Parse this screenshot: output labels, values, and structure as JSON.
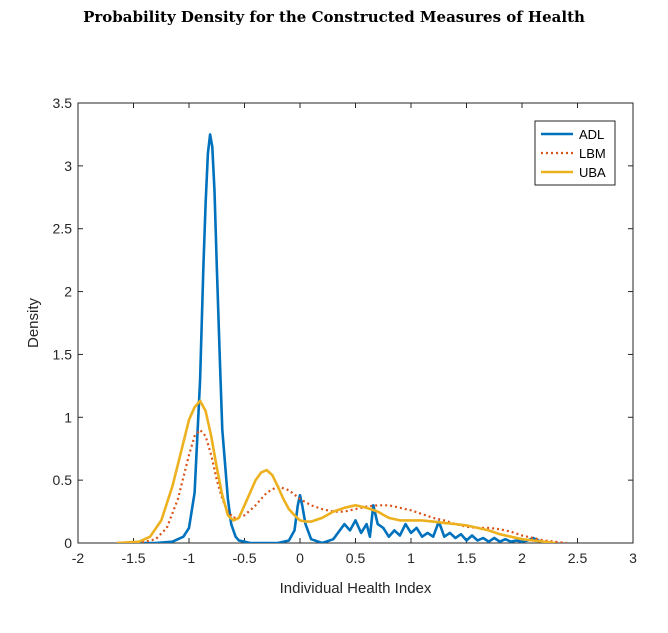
{
  "chart_data": {
    "type": "line",
    "title": "Probability Density for the Constructed Measures of Health",
    "xlabel": "Individual Health Index",
    "ylabel": "Density",
    "xlim": [
      -2,
      3
    ],
    "ylim": [
      0,
      3.5
    ],
    "xticks": [
      "-2",
      "-1.5",
      "-1",
      "-0.5",
      "0",
      "0.5",
      "1",
      "1.5",
      "2",
      "2.5",
      "3"
    ],
    "yticks": [
      "0",
      "0.5",
      "1",
      "1.5",
      "2",
      "2.5",
      "3",
      "3.5"
    ],
    "grid": false,
    "legend_position": "top-right",
    "series": [
      {
        "name": "ADL",
        "color": "#0072BD",
        "style": "solid",
        "x": [
          -1.6,
          -1.3,
          -1.15,
          -1.05,
          -1.0,
          -0.95,
          -0.9,
          -0.87,
          -0.85,
          -0.83,
          -0.81,
          -0.79,
          -0.77,
          -0.75,
          -0.72,
          -0.7,
          -0.65,
          -0.62,
          -0.58,
          -0.55,
          -0.5,
          -0.45,
          -0.4,
          -0.3,
          -0.2,
          -0.1,
          -0.05,
          -0.02,
          0.0,
          0.02,
          0.05,
          0.1,
          0.2,
          0.3,
          0.4,
          0.45,
          0.5,
          0.55,
          0.6,
          0.63,
          0.66,
          0.7,
          0.75,
          0.8,
          0.85,
          0.9,
          0.95,
          1.0,
          1.05,
          1.1,
          1.15,
          1.2,
          1.25,
          1.3,
          1.35,
          1.4,
          1.45,
          1.5,
          1.55,
          1.6,
          1.65,
          1.7,
          1.75,
          1.8,
          1.85,
          1.9,
          1.95,
          2.0,
          2.05,
          2.1,
          2.15,
          2.2,
          2.3
        ],
        "y": [
          0.0,
          0.0,
          0.01,
          0.05,
          0.12,
          0.4,
          1.3,
          2.2,
          2.7,
          3.1,
          3.25,
          3.15,
          2.8,
          2.2,
          1.4,
          0.9,
          0.35,
          0.15,
          0.05,
          0.02,
          0.01,
          0.0,
          0.0,
          0.0,
          0.0,
          0.02,
          0.1,
          0.3,
          0.38,
          0.3,
          0.15,
          0.03,
          0.0,
          0.03,
          0.15,
          0.1,
          0.18,
          0.08,
          0.15,
          0.05,
          0.3,
          0.15,
          0.12,
          0.05,
          0.1,
          0.06,
          0.15,
          0.08,
          0.12,
          0.05,
          0.08,
          0.05,
          0.17,
          0.05,
          0.08,
          0.04,
          0.07,
          0.02,
          0.06,
          0.02,
          0.04,
          0.01,
          0.04,
          0.01,
          0.03,
          0.01,
          0.02,
          0.01,
          0.02,
          0.04,
          0.02,
          0.0,
          0.0
        ]
      },
      {
        "name": "LBM",
        "color": "#D95319",
        "style": "dotted",
        "x": [
          -1.65,
          -1.4,
          -1.3,
          -1.2,
          -1.1,
          -1.0,
          -0.95,
          -0.9,
          -0.85,
          -0.8,
          -0.75,
          -0.7,
          -0.65,
          -0.6,
          -0.5,
          -0.4,
          -0.3,
          -0.2,
          -0.1,
          0.0,
          0.1,
          0.2,
          0.3,
          0.4,
          0.5,
          0.6,
          0.7,
          0.8,
          0.9,
          1.0,
          1.1,
          1.2,
          1.3,
          1.4,
          1.5,
          1.6,
          1.7,
          1.8,
          1.9,
          2.0,
          2.1,
          2.2,
          2.3,
          2.4
        ],
        "y": [
          0.0,
          0.01,
          0.03,
          0.12,
          0.35,
          0.7,
          0.85,
          0.9,
          0.85,
          0.7,
          0.5,
          0.35,
          0.25,
          0.2,
          0.22,
          0.3,
          0.4,
          0.45,
          0.42,
          0.35,
          0.3,
          0.27,
          0.25,
          0.25,
          0.27,
          0.29,
          0.3,
          0.3,
          0.28,
          0.26,
          0.23,
          0.2,
          0.18,
          0.15,
          0.13,
          0.12,
          0.12,
          0.11,
          0.09,
          0.06,
          0.04,
          0.02,
          0.01,
          0.0
        ]
      },
      {
        "name": "UBA",
        "color": "#EDB120",
        "style": "solid",
        "x": [
          -1.65,
          -1.45,
          -1.35,
          -1.25,
          -1.15,
          -1.05,
          -1.0,
          -0.95,
          -0.9,
          -0.85,
          -0.8,
          -0.75,
          -0.7,
          -0.65,
          -0.6,
          -0.55,
          -0.5,
          -0.45,
          -0.4,
          -0.35,
          -0.3,
          -0.25,
          -0.2,
          -0.15,
          -0.1,
          -0.05,
          0.0,
          0.05,
          0.1,
          0.2,
          0.3,
          0.4,
          0.5,
          0.6,
          0.7,
          0.8,
          0.9,
          1.0,
          1.1,
          1.2,
          1.3,
          1.4,
          1.5,
          1.6,
          1.7,
          1.8,
          1.9,
          2.0,
          2.1,
          2.2,
          2.3
        ],
        "y": [
          0.0,
          0.01,
          0.05,
          0.18,
          0.45,
          0.8,
          0.98,
          1.08,
          1.13,
          1.05,
          0.85,
          0.6,
          0.38,
          0.22,
          0.18,
          0.2,
          0.3,
          0.4,
          0.5,
          0.56,
          0.58,
          0.54,
          0.45,
          0.35,
          0.27,
          0.22,
          0.18,
          0.17,
          0.17,
          0.2,
          0.25,
          0.28,
          0.3,
          0.28,
          0.25,
          0.2,
          0.18,
          0.18,
          0.18,
          0.17,
          0.16,
          0.15,
          0.14,
          0.12,
          0.1,
          0.07,
          0.05,
          0.03,
          0.02,
          0.01,
          0.0
        ]
      }
    ]
  }
}
